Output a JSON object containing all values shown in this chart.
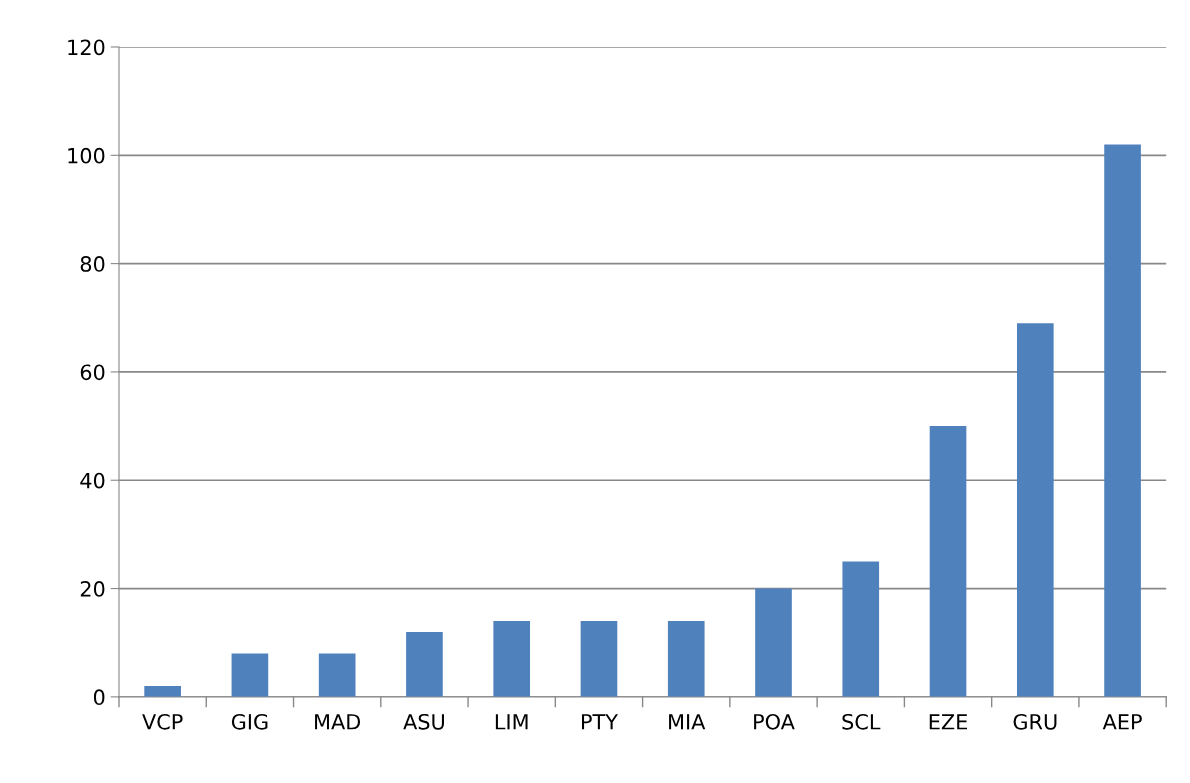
{
  "chart_data": {
    "type": "bar",
    "categories": [
      "VCP",
      "GIG",
      "MAD",
      "ASU",
      "LIM",
      "PTY",
      "MIA",
      "POA",
      "SCL",
      "EZE",
      "GRU",
      "AEP"
    ],
    "values": [
      2,
      8,
      8,
      12,
      14,
      14,
      14,
      20,
      25,
      50,
      69,
      102
    ],
    "color": "#4f81bd",
    "ylim": [
      0,
      120
    ],
    "yticks": [
      0,
      20,
      40,
      60,
      80,
      100,
      120
    ],
    "grid": "y",
    "legend": false
  }
}
